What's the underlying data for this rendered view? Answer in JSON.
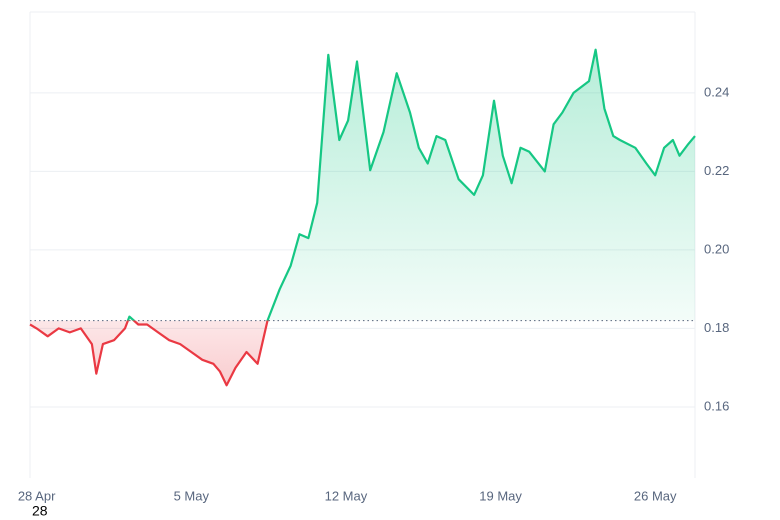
{
  "chart_data": {
    "type": "line",
    "x": [
      -0.3,
      0,
      0.5,
      1,
      1.5,
      2,
      2.5,
      2.7,
      3,
      3.5,
      4,
      4.2,
      4.6,
      5,
      5.5,
      6,
      6.5,
      7,
      7.5,
      8,
      8.3,
      8.6,
      9,
      9.5,
      10,
      10.45,
      11,
      11.5,
      11.9,
      12.3,
      12.7,
      13.2,
      13.7,
      14.1,
      14.5,
      15.1,
      15.7,
      16.3,
      16.9,
      17.3,
      17.7,
      18.1,
      18.5,
      19.1,
      19.8,
      20.2,
      20.7,
      21.1,
      21.5,
      21.9,
      22.3,
      23,
      23.4,
      23.8,
      24.3,
      25,
      25.3,
      25.7,
      26.1,
      26.4,
      27.1,
      27.6,
      28,
      28.4,
      28.8,
      29.1,
      29.5,
      29.8
    ],
    "series": [
      {
        "color": "#16c784",
        "values": [
          0.181,
          0.18,
          0.178,
          0.18,
          0.179,
          0.18,
          0.176,
          0.1685,
          0.176,
          0.177,
          0.18,
          0.183,
          0.181,
          0.181,
          0.179,
          0.177,
          0.176,
          0.174,
          0.172,
          0.171,
          0.169,
          0.1655,
          0.17,
          0.174,
          0.171,
          0.182,
          0.19,
          0.196,
          0.204,
          0.203,
          0.212,
          0.2497,
          0.228,
          0.233,
          0.248,
          0.2203,
          0.23,
          0.245,
          0.235,
          0.226,
          0.222,
          0.229,
          0.228,
          0.218,
          0.214,
          0.219,
          0.238,
          0.224,
          0.217,
          0.226,
          0.225,
          0.22,
          0.232,
          0.235,
          0.24,
          0.243,
          0.251,
          0.236,
          0.229,
          0.228,
          0.226,
          0.222,
          0.219,
          0.226,
          0.228,
          0.224,
          0.227,
          0.229
        ]
      }
    ],
    "below_color": "#ea3943",
    "baseline": 0.182,
    "xlim": [
      -0.3,
      29.8
    ],
    "xticks": [
      {
        "value": 0,
        "label": "28 Apr"
      },
      {
        "value": 7,
        "label": "5 May"
      },
      {
        "value": 14,
        "label": "12 May"
      },
      {
        "value": 21,
        "label": "19 May"
      },
      {
        "value": 28,
        "label": "26 May"
      }
    ],
    "ylim": [
      0.1419,
      0.2606
    ],
    "yticks": [
      0.16,
      0.18,
      {
        "value": 0.2,
        "label": "0.20"
      },
      0.22,
      0.24
    ],
    "grid": true,
    "extra_label": "28"
  }
}
